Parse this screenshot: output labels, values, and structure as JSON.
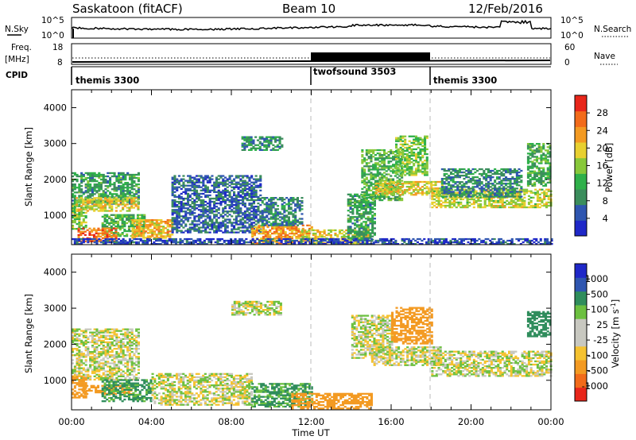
{
  "header": {
    "station": "Saskatoon (fitACF)",
    "beam": "Beam 10",
    "date": "12/Feb/2016"
  },
  "noise_panel": {
    "left_label": "N.Sky",
    "right_label": "N.Search",
    "left_ticks": [
      "10^5",
      "10^0"
    ],
    "right_ticks": [
      "10^5",
      "10^0"
    ]
  },
  "freq_panel": {
    "left_label_1": "Freq.",
    "left_label_2": "[MHz]",
    "right_label": "Nave",
    "left_ticks": [
      "18",
      "8"
    ],
    "right_ticks": [
      "60",
      "0"
    ]
  },
  "cpid": {
    "label": "CPID",
    "segments": [
      {
        "name": "themis 3300",
        "start_h": 0,
        "end_h": 12
      },
      {
        "name": "twofsound 3503",
        "start_h": 12,
        "end_h": 18
      },
      {
        "name": "themis 3300",
        "start_h": 18,
        "end_h": 24
      }
    ]
  },
  "colors": {
    "power": [
      "#1f28c8",
      "#2f56b0",
      "#3b8d5c",
      "#2fb04a",
      "#88c83a",
      "#e8d030",
      "#f39a22",
      "#f26b1a",
      "#e8261a"
    ],
    "velocity": [
      "#e8261a",
      "#f26b1a",
      "#f39a22",
      "#f5c230",
      "#c8c8c0",
      "#c8c8c0",
      "#6cc040",
      "#2f8d5c",
      "#2f56b0",
      "#1f28c8"
    ],
    "grey": "#c9c9c1"
  },
  "chart_data": [
    {
      "type": "heatmap",
      "name": "Power",
      "ylabel": "Slant Range [km]",
      "y_ticks": [
        1000,
        2000,
        3000,
        4000
      ],
      "ylim": [
        180,
        4500
      ],
      "xlim_hours": [
        0,
        24
      ],
      "colorbar_label": "Power [dB]",
      "colorbar_ticks": [
        "28",
        "24",
        "20",
        "16",
        "12",
        "8",
        "4"
      ],
      "colorbar_range": [
        0,
        30
      ],
      "regions": [
        {
          "t0": 0.0,
          "t1": 0.7,
          "r0": 600,
          "r1": 1300,
          "value": 14
        },
        {
          "t0": 0.0,
          "t1": 3.3,
          "r0": 1300,
          "r1": 2200,
          "value": 10
        },
        {
          "t0": 0.2,
          "t1": 3.3,
          "r0": 1100,
          "r1": 1500,
          "value": 18
        },
        {
          "t0": 1.5,
          "t1": 3.6,
          "r0": 400,
          "r1": 1000,
          "value": 12
        },
        {
          "t0": 0.3,
          "t1": 2.2,
          "r0": 250,
          "r1": 650,
          "value": 24
        },
        {
          "t0": 3.0,
          "t1": 5.0,
          "r0": 350,
          "r1": 850,
          "value": 20
        },
        {
          "t0": 5.0,
          "t1": 9.5,
          "r0": 500,
          "r1": 2100,
          "value": 6
        },
        {
          "t0": 8.5,
          "t1": 10.5,
          "r0": 2800,
          "r1": 3200,
          "value": 9
        },
        {
          "t0": 9.0,
          "t1": 12.0,
          "r0": 200,
          "r1": 700,
          "value": 22
        },
        {
          "t0": 9.5,
          "t1": 11.5,
          "r0": 700,
          "r1": 1500,
          "value": 8
        },
        {
          "t0": 11.5,
          "t1": 14.8,
          "r0": 200,
          "r1": 600,
          "value": 18
        },
        {
          "t0": 13.8,
          "t1": 15.2,
          "r0": 300,
          "r1": 1600,
          "value": 10
        },
        {
          "t0": 14.5,
          "t1": 16.5,
          "r0": 1400,
          "r1": 2800,
          "value": 12
        },
        {
          "t0": 15.2,
          "t1": 18.5,
          "r0": 1550,
          "r1": 1950,
          "value": 18
        },
        {
          "t0": 16.2,
          "t1": 17.8,
          "r0": 2100,
          "r1": 3200,
          "value": 14
        },
        {
          "t0": 18.0,
          "t1": 24.0,
          "r0": 1200,
          "r1": 1700,
          "value": 17
        },
        {
          "t0": 18.5,
          "t1": 22.5,
          "r0": 1500,
          "r1": 2300,
          "value": 8
        },
        {
          "t0": 22.8,
          "t1": 24.0,
          "r0": 1800,
          "r1": 3000,
          "value": 11
        },
        {
          "t0": 0.0,
          "t1": 24.0,
          "r0": 180,
          "r1": 320,
          "value": 4
        }
      ]
    },
    {
      "type": "heatmap",
      "name": "Velocity",
      "ylabel": "Slant Range [km]",
      "xlabel": "Time UT",
      "x_ticks": [
        "00:00",
        "04:00",
        "08:00",
        "12:00",
        "16:00",
        "20:00",
        "00:00"
      ],
      "y_ticks": [
        1000,
        2000,
        3000,
        4000
      ],
      "ylim": [
        180,
        4500
      ],
      "xlim_hours": [
        0,
        24
      ],
      "colorbar_label": "Velocity [m s^-1]",
      "colorbar_ticks": [
        "1000",
        "500",
        "100",
        "25",
        "-25",
        "-100",
        "-500",
        "-1000"
      ],
      "regions": [
        {
          "t0": 0.0,
          "t1": 3.4,
          "r0": 1000,
          "r1": 2400,
          "value": 0
        },
        {
          "t0": 0.0,
          "t1": 0.7,
          "r0": 500,
          "r1": 1100,
          "value": -200
        },
        {
          "t0": 0.5,
          "t1": 3.0,
          "r0": 600,
          "r1": 850,
          "value": -300
        },
        {
          "t0": 1.5,
          "t1": 4.0,
          "r0": 400,
          "r1": 1000,
          "value": 150
        },
        {
          "t0": 4.0,
          "t1": 9.0,
          "r0": 300,
          "r1": 1200,
          "value": 0
        },
        {
          "t0": 8.0,
          "t1": 10.5,
          "r0": 2800,
          "r1": 3200,
          "value": 0
        },
        {
          "t0": 9.0,
          "t1": 12.0,
          "r0": 250,
          "r1": 900,
          "value": 120
        },
        {
          "t0": 11.0,
          "t1": 15.0,
          "r0": 200,
          "r1": 650,
          "value": -300
        },
        {
          "t0": 14.0,
          "t1": 16.0,
          "r0": 1600,
          "r1": 2800,
          "value": 0
        },
        {
          "t0": 15.0,
          "t1": 18.5,
          "r0": 1400,
          "r1": 1900,
          "value": 0
        },
        {
          "t0": 16.0,
          "t1": 18.0,
          "r0": 2000,
          "r1": 3000,
          "value": -400
        },
        {
          "t0": 18.0,
          "t1": 24.0,
          "r0": 1100,
          "r1": 1800,
          "value": 0
        },
        {
          "t0": 22.8,
          "t1": 24.0,
          "r0": 2200,
          "r1": 2900,
          "value": 300
        }
      ]
    }
  ]
}
